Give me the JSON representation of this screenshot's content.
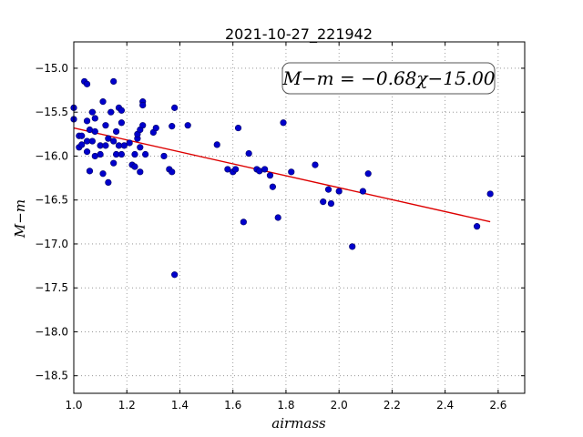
{
  "chart_data": {
    "type": "scatter",
    "title": "2021-10-27_221942",
    "xlabel": "airmass",
    "ylabel": "M−m",
    "xlim": [
      1.0,
      2.7
    ],
    "ylim": [
      -18.7,
      -14.7
    ],
    "y_inverted": true,
    "x_ticks": [
      1.0,
      1.2,
      1.4,
      1.6,
      1.8,
      2.0,
      2.2,
      2.4,
      2.6
    ],
    "x_tick_labels": [
      "1.0",
      "1.2",
      "1.4",
      "1.6",
      "1.8",
      "2.0",
      "2.2",
      "2.4",
      "2.6"
    ],
    "y_ticks": [
      -15.0,
      -15.5,
      -16.0,
      -16.5,
      -17.0,
      -17.5,
      -18.0,
      -18.5
    ],
    "y_tick_labels": [
      "−15.0",
      "−15.5",
      "−16.0",
      "−16.5",
      "−17.0",
      "−17.5",
      "−18.0",
      "−18.5"
    ],
    "grid": true,
    "annotation": "M−m = −0.68χ−15.00",
    "annotation_position": "top-right",
    "colors": {
      "points": "#0000cc",
      "fit": "#dd0000",
      "grid": "#888888"
    },
    "fit_line": {
      "slope": -0.68,
      "intercept": -15.0,
      "x_range": [
        1.0,
        2.57
      ]
    },
    "series": [
      {
        "points": [
          [
            1.0,
            -15.45
          ],
          [
            1.0,
            -15.58
          ],
          [
            1.02,
            -15.77
          ],
          [
            1.02,
            -15.9
          ],
          [
            1.03,
            -15.87
          ],
          [
            1.03,
            -15.77
          ],
          [
            1.04,
            -15.15
          ],
          [
            1.05,
            -15.18
          ],
          [
            1.05,
            -15.6
          ],
          [
            1.05,
            -15.83
          ],
          [
            1.05,
            -15.95
          ],
          [
            1.06,
            -16.17
          ],
          [
            1.06,
            -15.7
          ],
          [
            1.07,
            -15.5
          ],
          [
            1.07,
            -15.83
          ],
          [
            1.08,
            -15.57
          ],
          [
            1.08,
            -15.72
          ],
          [
            1.08,
            -16.0
          ],
          [
            1.1,
            -15.88
          ],
          [
            1.1,
            -15.98
          ],
          [
            1.11,
            -16.2
          ],
          [
            1.11,
            -15.38
          ],
          [
            1.12,
            -15.88
          ],
          [
            1.12,
            -15.65
          ],
          [
            1.13,
            -15.8
          ],
          [
            1.13,
            -16.3
          ],
          [
            1.14,
            -15.5
          ],
          [
            1.15,
            -15.15
          ],
          [
            1.15,
            -15.83
          ],
          [
            1.15,
            -16.08
          ],
          [
            1.16,
            -15.72
          ],
          [
            1.16,
            -15.98
          ],
          [
            1.17,
            -15.88
          ],
          [
            1.17,
            -15.45
          ],
          [
            1.18,
            -15.48
          ],
          [
            1.18,
            -15.62
          ],
          [
            1.18,
            -15.98
          ],
          [
            1.19,
            -15.88
          ],
          [
            1.21,
            -15.85
          ],
          [
            1.22,
            -16.1
          ],
          [
            1.23,
            -16.12
          ],
          [
            1.23,
            -15.98
          ],
          [
            1.24,
            -15.8
          ],
          [
            1.24,
            -15.75
          ],
          [
            1.25,
            -16.18
          ],
          [
            1.25,
            -15.9
          ],
          [
            1.25,
            -15.7
          ],
          [
            1.26,
            -15.38
          ],
          [
            1.26,
            -15.42
          ],
          [
            1.26,
            -15.65
          ],
          [
            1.27,
            -15.98
          ],
          [
            1.3,
            -15.73
          ],
          [
            1.31,
            -15.68
          ],
          [
            1.34,
            -16.0
          ],
          [
            1.36,
            -16.15
          ],
          [
            1.37,
            -16.18
          ],
          [
            1.37,
            -15.66
          ],
          [
            1.38,
            -15.45
          ],
          [
            1.38,
            -17.35
          ],
          [
            1.43,
            -15.65
          ],
          [
            1.54,
            -15.87
          ],
          [
            1.58,
            -16.15
          ],
          [
            1.6,
            -16.18
          ],
          [
            1.61,
            -16.15
          ],
          [
            1.62,
            -15.68
          ],
          [
            1.64,
            -16.75
          ],
          [
            1.66,
            -15.97
          ],
          [
            1.69,
            -16.15
          ],
          [
            1.7,
            -16.17
          ],
          [
            1.72,
            -16.15
          ],
          [
            1.74,
            -16.22
          ],
          [
            1.75,
            -16.35
          ],
          [
            1.77,
            -16.7
          ],
          [
            1.79,
            -15.62
          ],
          [
            1.82,
            -16.18
          ],
          [
            1.91,
            -16.1
          ],
          [
            1.94,
            -16.52
          ],
          [
            1.96,
            -16.38
          ],
          [
            1.97,
            -16.54
          ],
          [
            2.0,
            -16.4
          ],
          [
            2.05,
            -17.03
          ],
          [
            2.09,
            -16.4
          ],
          [
            2.11,
            -16.2
          ],
          [
            2.52,
            -16.8
          ],
          [
            2.57,
            -16.43
          ]
        ]
      }
    ]
  }
}
